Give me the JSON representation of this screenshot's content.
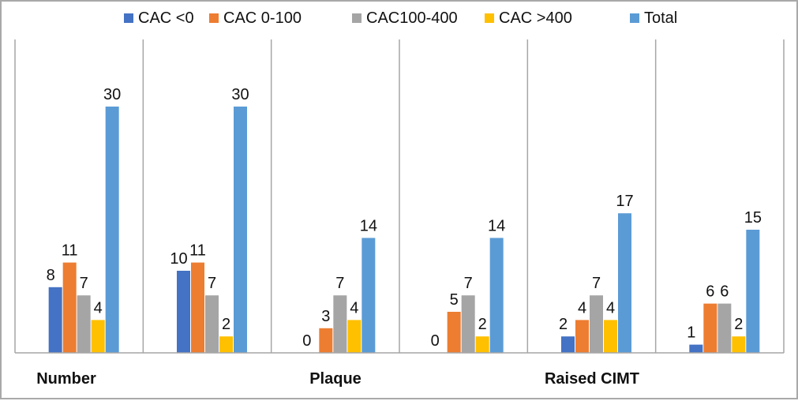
{
  "chart_data": {
    "type": "bar",
    "title": "",
    "xlabel": "",
    "ylabel": "",
    "categories": [
      "Number",
      "",
      "Plaque",
      "",
      "Raised CIMT",
      ""
    ],
    "series": [
      {
        "name": "CAC <0",
        "color": "#4472C4",
        "values": [
          8,
          10,
          0,
          0,
          2,
          1
        ]
      },
      {
        "name": "CAC 0-100",
        "color": "#ED7D31",
        "values": [
          11,
          11,
          3,
          5,
          4,
          6
        ]
      },
      {
        "name": "CAC100-400",
        "color": "#A5A5A5",
        "values": [
          7,
          7,
          7,
          7,
          7,
          6
        ]
      },
      {
        "name": "CAC >400",
        "color": "#FFC000",
        "values": [
          4,
          2,
          4,
          2,
          4,
          2
        ]
      },
      {
        "name": "Total",
        "color": "#5B9BD5",
        "values": [
          30,
          30,
          14,
          14,
          17,
          15
        ]
      }
    ],
    "ylim": [
      0,
      30
    ],
    "grid": false,
    "legend_position": "top",
    "data_labels": true
  }
}
